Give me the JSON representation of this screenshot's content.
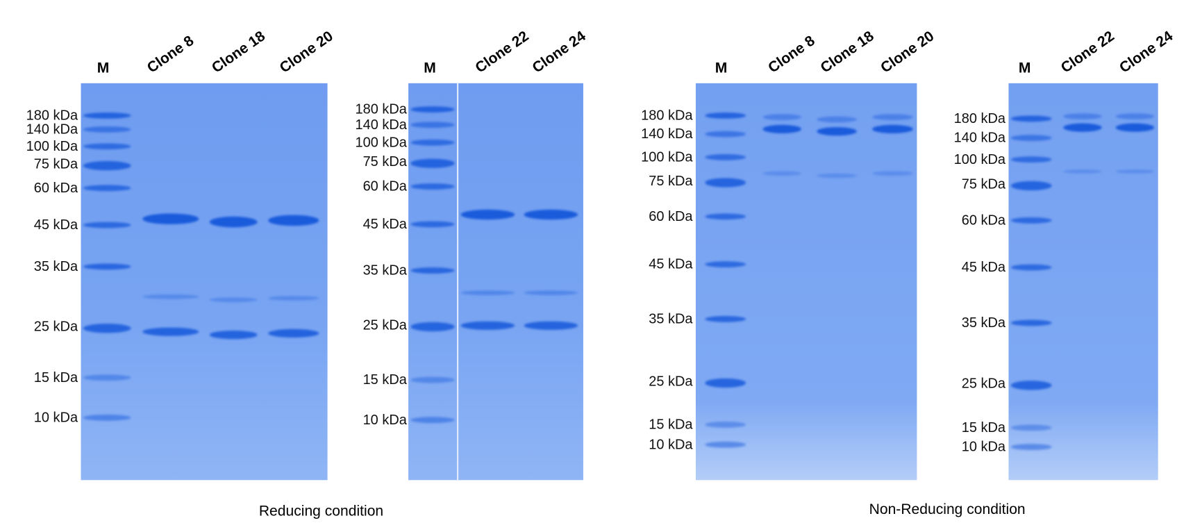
{
  "gels": [
    {
      "marker_label": "M",
      "lanes": [
        "Clone 8",
        "Clone 18",
        "Clone 20"
      ],
      "ladder": [
        "180 kDa",
        "140 kDa",
        "100 kDa",
        "75 kDa",
        "60 kDa",
        "45 kDa",
        "35 kDa",
        "25 kDa",
        "15 kDa",
        "10 kDa"
      ]
    },
    {
      "marker_label": "M",
      "lanes": [
        "Clone 22",
        "Clone 24"
      ],
      "ladder": [
        "180 kDa",
        "140 kDa",
        "100 kDa",
        "75 kDa",
        "60 kDa",
        "45 kDa",
        "35 kDa",
        "25 kDa",
        "15 kDa",
        "10 kDa"
      ]
    },
    {
      "marker_label": "M",
      "lanes": [
        "Clone 8",
        "Clone 18",
        "Clone 20"
      ],
      "ladder": [
        "180 kDa",
        "140 kDa",
        "100 kDa",
        "75 kDa",
        "60 kDa",
        "45 kDa",
        "35 kDa",
        "25 kDa",
        "15 kDa",
        "10 kDa"
      ]
    },
    {
      "marker_label": "M",
      "lanes": [
        "Clone 22",
        "Clone 24"
      ],
      "ladder": [
        "180 kDa",
        "140 kDa",
        "100 kDa",
        "75 kDa",
        "60 kDa",
        "45 kDa",
        "35 kDa",
        "25 kDa",
        "15 kDa",
        "10 kDa"
      ]
    }
  ],
  "captions": {
    "reducing": "Reducing condition",
    "non_reducing": "Non-Reducing condition"
  },
  "colors": {
    "gel": "#78a4f2",
    "band": "#0a4fd8"
  }
}
